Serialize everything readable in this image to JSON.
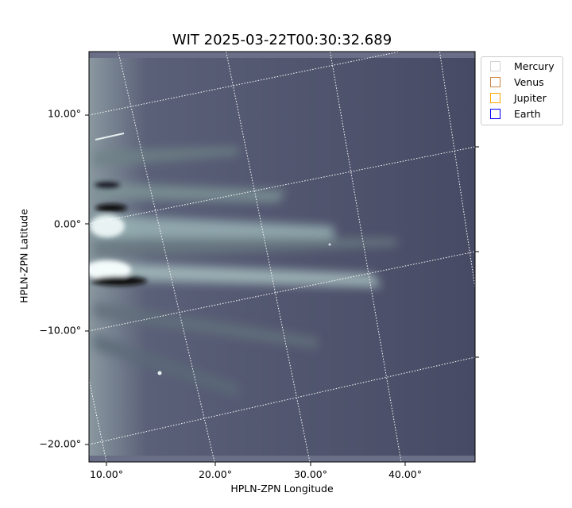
{
  "chart_data": {
    "type": "image",
    "title": "WIT 2025-03-22T00:30:32.689",
    "xlabel": "HPLN-ZPN Longitude",
    "ylabel": "HPLN-ZPN Latitude",
    "xticks": [
      "10.00°",
      "20.00°",
      "30.00°",
      "40.00°"
    ],
    "yticks": [
      "10.00°",
      "0.00°",
      "−10.00°",
      "−20.00°"
    ],
    "grid": true,
    "colormap": "bone",
    "legend": {
      "placement": "outside-top-right",
      "entries": [
        {
          "name": "Mercury",
          "color": "#d3d3d3"
        },
        {
          "name": "Venus",
          "color": "#cd853f"
        },
        {
          "name": "Jupiter",
          "color": "#ffa500"
        },
        {
          "name": "Earth",
          "color": "#0000ff"
        }
      ]
    }
  }
}
